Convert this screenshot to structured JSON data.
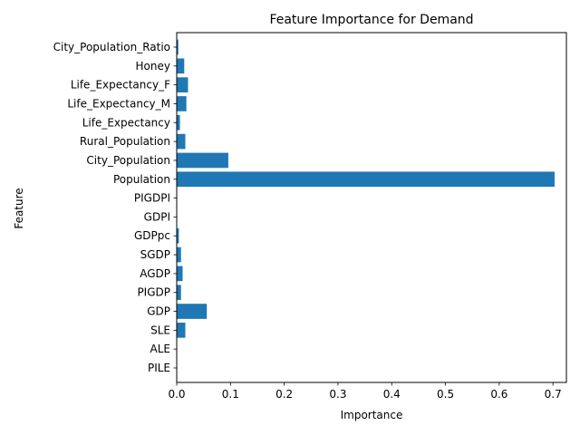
{
  "chart_data": {
    "type": "bar",
    "orientation": "horizontal",
    "title": "Feature Importance for Demand",
    "xlabel": "Importance",
    "ylabel": "Feature",
    "xlim": [
      0,
      0.725
    ],
    "xticks": [
      0.0,
      0.1,
      0.2,
      0.3,
      0.4,
      0.5,
      0.6,
      0.7
    ],
    "xtick_labels": [
      "0.0",
      "0.1",
      "0.2",
      "0.3",
      "0.4",
      "0.5",
      "0.6",
      "0.7"
    ],
    "grid": false,
    "bar_color": "#1f77b4",
    "categories": [
      "PILE",
      "ALE",
      "SLE",
      "GDP",
      "PIGDP",
      "AGDP",
      "SGDP",
      "GDPpc",
      "GDPI",
      "PIGDPI",
      "Population",
      "City_Population",
      "Rural_Population",
      "Life_Expectancy",
      "Life_Expectancy_M",
      "Life_Expectancy_F",
      "Honey",
      "City_Population_Ratio"
    ],
    "values": [
      0.0,
      0.0,
      0.016,
      0.056,
      0.008,
      0.011,
      0.008,
      0.004,
      0.0,
      0.0,
      0.703,
      0.096,
      0.016,
      0.006,
      0.018,
      0.021,
      0.014,
      0.003
    ]
  }
}
